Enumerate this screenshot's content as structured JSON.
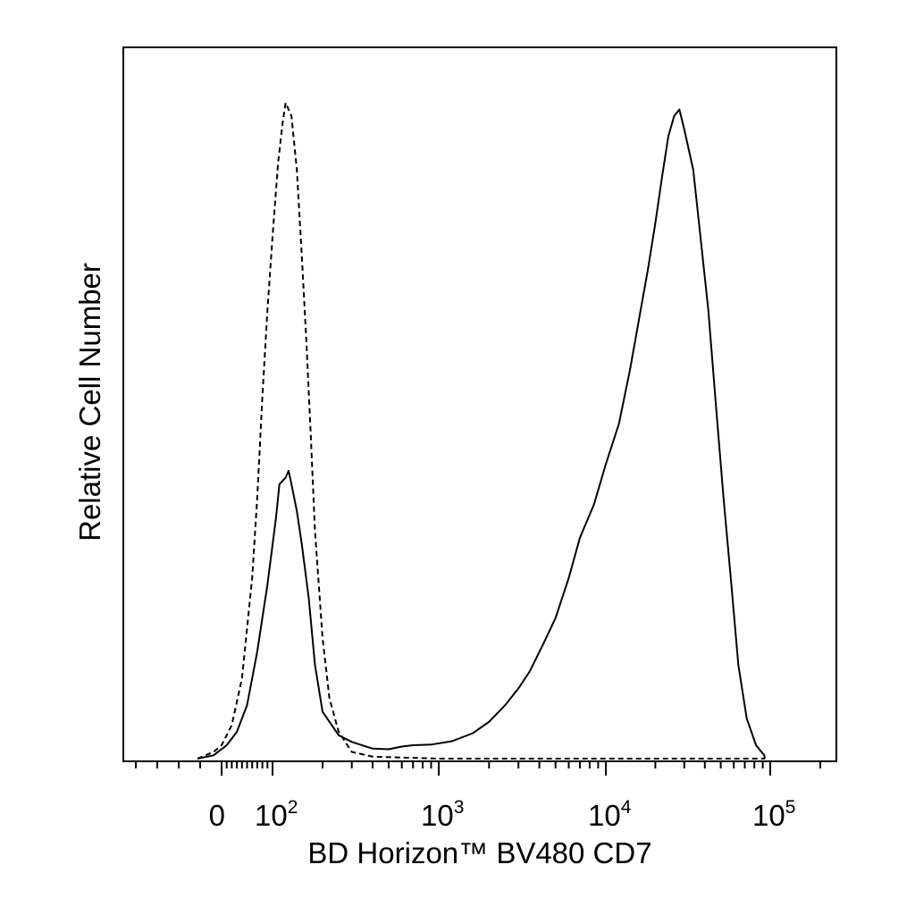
{
  "chart_data": {
    "type": "line",
    "title": "",
    "xlabel": "BD Horizon™ BV480 CD7",
    "ylabel": "Relative Cell Number",
    "x_scale": "biexponential (linear near 0, log above ~10^2)",
    "xlim": [
      -60,
      200000
    ],
    "ylim": [
      0,
      100
    ],
    "grid": false,
    "legend": "none",
    "x_ticks": [
      {
        "value": 0,
        "base": "0",
        "exp": ""
      },
      {
        "value": 100,
        "base": "10",
        "exp": "2"
      },
      {
        "value": 1000,
        "base": "10",
        "exp": "3"
      },
      {
        "value": 10000,
        "base": "10",
        "exp": "4"
      },
      {
        "value": 100000,
        "base": "10",
        "exp": "5"
      }
    ],
    "series": [
      {
        "style": "dashed",
        "color": "#000000",
        "points": [
          [
            -30,
            0
          ],
          [
            -10,
            1
          ],
          [
            0,
            2
          ],
          [
            20,
            5
          ],
          [
            40,
            12
          ],
          [
            60,
            27
          ],
          [
            70,
            39
          ],
          [
            80,
            54
          ],
          [
            90,
            67
          ],
          [
            100,
            78
          ],
          [
            108,
            89
          ],
          [
            115,
            95
          ],
          [
            120,
            98
          ],
          [
            130,
            96
          ],
          [
            140,
            88
          ],
          [
            150,
            75
          ],
          [
            160,
            62
          ],
          [
            170,
            48
          ],
          [
            180,
            34
          ],
          [
            200,
            18
          ],
          [
            220,
            9
          ],
          [
            250,
            4
          ],
          [
            300,
            1
          ],
          [
            400,
            0.3
          ],
          [
            1000,
            0
          ],
          [
            10000,
            0
          ],
          [
            150000,
            0
          ]
        ]
      },
      {
        "style": "solid",
        "color": "#000000",
        "points": [
          [
            -30,
            0
          ],
          [
            -10,
            0.5
          ],
          [
            10,
            2
          ],
          [
            30,
            4
          ],
          [
            50,
            8
          ],
          [
            70,
            16
          ],
          [
            90,
            26
          ],
          [
            105,
            36
          ],
          [
            110,
            41
          ],
          [
            120,
            42
          ],
          [
            125,
            43
          ],
          [
            130,
            41
          ],
          [
            140,
            37
          ],
          [
            150,
            32
          ],
          [
            165,
            24
          ],
          [
            180,
            14
          ],
          [
            200,
            7
          ],
          [
            250,
            3.5
          ],
          [
            300,
            2.5
          ],
          [
            400,
            1.5
          ],
          [
            500,
            1.4
          ],
          [
            600,
            1.8
          ],
          [
            700,
            2.0
          ],
          [
            900,
            2.1
          ],
          [
            1200,
            2.6
          ],
          [
            1600,
            3.8
          ],
          [
            2000,
            5.5
          ],
          [
            2500,
            8
          ],
          [
            3000,
            10.5
          ],
          [
            3500,
            13
          ],
          [
            4200,
            17
          ],
          [
            5000,
            21
          ],
          [
            6000,
            27
          ],
          [
            7000,
            33
          ],
          [
            8500,
            38
          ],
          [
            10000,
            44
          ],
          [
            12000,
            50
          ],
          [
            14000,
            58
          ],
          [
            16000,
            66
          ],
          [
            18000,
            73
          ],
          [
            20000,
            80
          ],
          [
            22000,
            87
          ],
          [
            24000,
            93
          ],
          [
            26000,
            96
          ],
          [
            28000,
            97
          ],
          [
            30000,
            94
          ],
          [
            34000,
            88
          ],
          [
            38000,
            77
          ],
          [
            42000,
            67
          ],
          [
            47000,
            52
          ],
          [
            52000,
            39
          ],
          [
            58000,
            26
          ],
          [
            64000,
            14
          ],
          [
            72000,
            6
          ],
          [
            82000,
            2
          ],
          [
            92000,
            0.5
          ],
          [
            100000,
            0
          ],
          [
            150000,
            0
          ]
        ]
      }
    ]
  }
}
